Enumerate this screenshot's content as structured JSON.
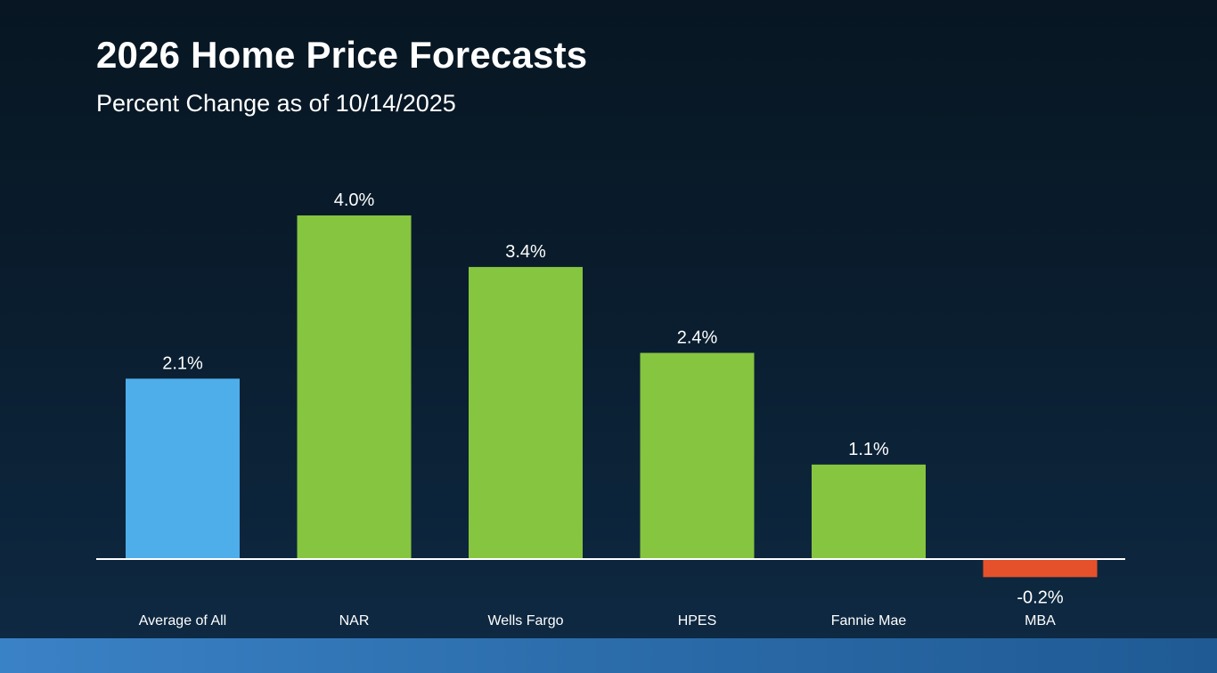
{
  "header": {
    "title": "2026 Home Price Forecasts",
    "subtitle": "Percent Change as of 10/14/2025"
  },
  "colors": {
    "average": "#4eaeea",
    "positive": "#86c540",
    "negative": "#e5512b",
    "axis": "#ffffff",
    "text": "#ffffff"
  },
  "chart_data": {
    "type": "bar",
    "title": "2026 Home Price Forecasts",
    "subtitle": "Percent Change as of 10/14/2025",
    "categories": [
      "Average of All",
      "NAR",
      "Wells Fargo",
      "HPES",
      "Fannie Mae",
      "MBA"
    ],
    "values": [
      2.1,
      4.0,
      3.4,
      2.4,
      1.1,
      -0.2
    ],
    "data_labels": [
      "2.1%",
      "4.0%",
      "3.4%",
      "2.4%",
      "1.1%",
      "-0.2%"
    ],
    "bar_color_roles": [
      "average",
      "positive",
      "positive",
      "positive",
      "positive",
      "negative"
    ],
    "xlabel": "",
    "ylabel": "",
    "grid": false,
    "legend": "none"
  }
}
